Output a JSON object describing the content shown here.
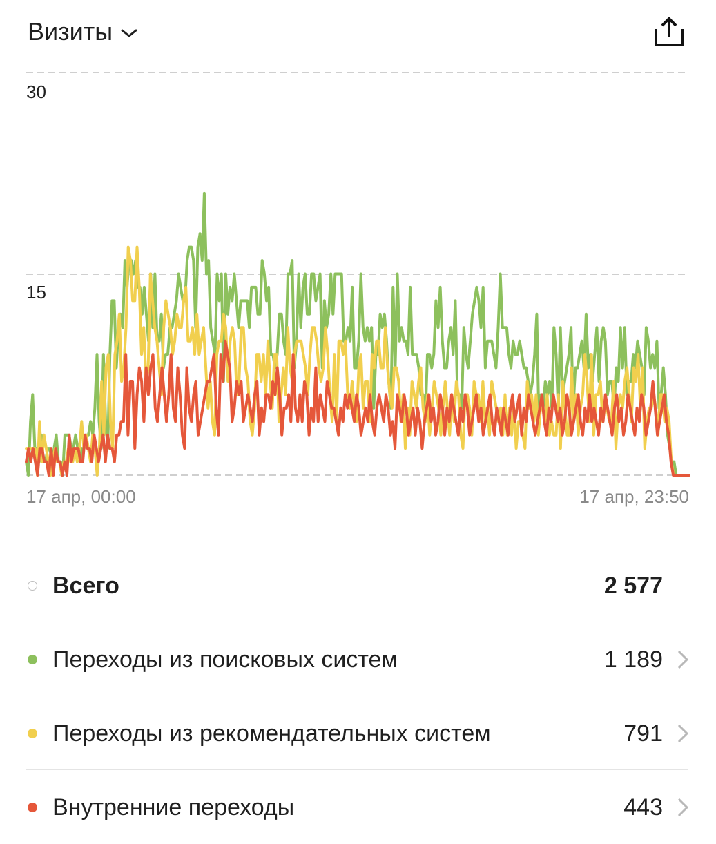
{
  "header": {
    "metric_title": "Визиты",
    "dropdown_icon": "chevron-down-icon",
    "share_icon": "share-export-icon"
  },
  "chart_data": {
    "type": "line",
    "ylim": [
      0,
      30
    ],
    "yticks": [
      "30",
      "15"
    ],
    "x_start_label": "17 апр, 00:00",
    "x_end_label": "17 апр, 23:50",
    "grid": "dashed-horizontal",
    "series": [
      {
        "color": "#8dc05d",
        "values": [
          1,
          0,
          4,
          6,
          2,
          2,
          1,
          3,
          1,
          1,
          2,
          2,
          1,
          2,
          3,
          1,
          1,
          0,
          3,
          3,
          3,
          2,
          2,
          3,
          2,
          1,
          2,
          2,
          3,
          3,
          4,
          3,
          5,
          9,
          4,
          2,
          9,
          4,
          2,
          9,
          13,
          13,
          8,
          11,
          12,
          11,
          16,
          14,
          16,
          16,
          15,
          16,
          14,
          14,
          12,
          14,
          12,
          10,
          15,
          11,
          15,
          10,
          10,
          12,
          8,
          9,
          9,
          11,
          11,
          12,
          13,
          15,
          14,
          13,
          13,
          16,
          17,
          17,
          16,
          11,
          17,
          18,
          16,
          21,
          15,
          16,
          11,
          10,
          9,
          15,
          13,
          15,
          7,
          15,
          12,
          14,
          13,
          15,
          13,
          11,
          13,
          13,
          13,
          13,
          11,
          14,
          14,
          14,
          12,
          12,
          16,
          15,
          13,
          14,
          9,
          9,
          8,
          9,
          12,
          12,
          10,
          9,
          15,
          15,
          16,
          8,
          10,
          15,
          11,
          14,
          15,
          12,
          12,
          15,
          15,
          13,
          14,
          15,
          8,
          13,
          11,
          12,
          15,
          12,
          15,
          15,
          15,
          15,
          10,
          10,
          11,
          10,
          14,
          8,
          8,
          10,
          15,
          11,
          10,
          11,
          10,
          11,
          5,
          9,
          9,
          12,
          11,
          12,
          10,
          7,
          5,
          14,
          8,
          15,
          10,
          11,
          10,
          10,
          9,
          14,
          9,
          9,
          9,
          8,
          6,
          6,
          4,
          9,
          9,
          8,
          9,
          13,
          11,
          14,
          10,
          8,
          8,
          10,
          11,
          9,
          13,
          6,
          6,
          5,
          11,
          9,
          8,
          10,
          12,
          13,
          14,
          13,
          11,
          14,
          8,
          10,
          10,
          10,
          9,
          8,
          11,
          15,
          11,
          11,
          11,
          9,
          8,
          10,
          9,
          9,
          10,
          9,
          8,
          8,
          7,
          6,
          7,
          9,
          12,
          4,
          6,
          5,
          7,
          6,
          7,
          5,
          11,
          9,
          5,
          11,
          6,
          7,
          8,
          9,
          11,
          5,
          8,
          8,
          9,
          10,
          8,
          12,
          8,
          9,
          7,
          9,
          11,
          7,
          10,
          11,
          10,
          6,
          7,
          7,
          5,
          8,
          7,
          11,
          8,
          11,
          6,
          7,
          7,
          9,
          8,
          10,
          9,
          8,
          6,
          11,
          10,
          8,
          9,
          8,
          10,
          5,
          6,
          8,
          6,
          3,
          2,
          1,
          1,
          0,
          0,
          0,
          0,
          0,
          0,
          0
        ]
      },
      {
        "color": "#f1cf4e",
        "values": [
          2,
          2,
          2,
          2,
          2,
          0,
          4,
          1,
          3,
          2,
          1,
          0,
          1,
          2,
          1,
          1,
          0,
          1,
          1,
          2,
          1,
          1,
          2,
          1,
          2,
          4,
          2,
          3,
          2,
          1,
          3,
          2,
          0,
          2,
          7,
          3,
          8,
          9,
          4,
          2,
          9,
          10,
          12,
          7,
          8,
          11,
          17,
          16,
          13,
          13,
          17,
          14,
          9,
          11,
          7,
          8,
          15,
          13,
          11,
          10,
          8,
          6,
          11,
          13,
          12,
          11,
          9,
          10,
          12,
          11,
          11,
          13,
          14,
          10,
          10,
          11,
          9,
          12,
          9,
          10,
          11,
          8,
          5,
          7,
          4,
          3,
          9,
          10,
          10,
          12,
          11,
          7,
          10,
          11,
          10,
          6,
          7,
          11,
          11,
          8,
          7,
          4,
          3,
          5,
          9,
          9,
          7,
          9,
          6,
          10,
          7,
          5,
          9,
          9,
          4,
          6,
          8,
          6,
          11,
          8,
          7,
          9,
          10,
          10,
          10,
          9,
          8,
          6,
          9,
          11,
          11,
          10,
          8,
          7,
          8,
          11,
          9,
          6,
          4,
          9,
          4,
          10,
          10,
          9,
          10,
          6,
          5,
          7,
          5,
          4,
          8,
          9,
          5,
          7,
          7,
          4,
          9,
          8,
          10,
          10,
          8,
          8,
          11,
          8,
          6,
          5,
          8,
          8,
          7,
          4,
          6,
          2,
          5,
          3,
          7,
          6,
          5,
          7,
          8,
          5,
          4,
          6,
          3,
          5,
          7,
          6,
          5,
          3,
          5,
          7,
          5,
          3,
          6,
          4,
          7,
          6,
          3,
          2,
          6,
          6,
          5,
          3,
          7,
          6,
          6,
          4,
          7,
          4,
          5,
          3,
          7,
          6,
          5,
          4,
          5,
          3,
          6,
          3,
          5,
          3,
          5,
          2,
          4,
          4,
          3,
          2,
          7,
          5,
          6,
          4,
          6,
          3,
          5,
          5,
          4,
          6,
          3,
          4,
          3,
          3,
          6,
          2,
          7,
          5,
          3,
          3,
          8,
          4,
          6,
          3,
          5,
          6,
          9,
          7,
          4,
          9,
          3,
          6,
          6,
          7,
          4,
          5,
          5,
          4,
          4,
          7,
          2,
          5,
          6,
          5,
          7,
          8,
          6,
          4,
          8,
          7,
          9,
          5,
          8,
          2,
          4,
          5,
          5,
          6,
          5,
          3,
          6,
          6,
          4,
          5,
          4,
          1,
          0,
          0,
          0,
          0,
          0,
          0,
          0,
          0
        ]
      },
      {
        "color": "#e5573a",
        "values": [
          1,
          2,
          1,
          2,
          1,
          0,
          2,
          2,
          1,
          1,
          0,
          2,
          0,
          2,
          1,
          1,
          0,
          1,
          0,
          3,
          1,
          2,
          2,
          2,
          1,
          1,
          3,
          2,
          2,
          1,
          3,
          2,
          1,
          2,
          3,
          1,
          3,
          2,
          2,
          1,
          3,
          3,
          4,
          4,
          9,
          3,
          7,
          7,
          2,
          6,
          8,
          7,
          4,
          8,
          6,
          8,
          9,
          5,
          4,
          6,
          8,
          6,
          4,
          6,
          9,
          5,
          4,
          8,
          6,
          3,
          2,
          8,
          5,
          4,
          6,
          7,
          3,
          4,
          5,
          6,
          7,
          7,
          8,
          9,
          5,
          3,
          9,
          7,
          10,
          9,
          8,
          4,
          5,
          7,
          6,
          7,
          4,
          5,
          6,
          5,
          4,
          6,
          7,
          3,
          5,
          4,
          6,
          6,
          5,
          7,
          6,
          8,
          6,
          3,
          5,
          5,
          6,
          4,
          9,
          5,
          4,
          6,
          4,
          7,
          6,
          3,
          5,
          4,
          8,
          4,
          6,
          5,
          4,
          7,
          6,
          5,
          5,
          4,
          3,
          5,
          4,
          6,
          5,
          6,
          5,
          4,
          6,
          5,
          3,
          4,
          5,
          4,
          6,
          4,
          3,
          5,
          6,
          5,
          4,
          6,
          5,
          3,
          4,
          2,
          6,
          5,
          4,
          6,
          5,
          3,
          4,
          5,
          3,
          5,
          4,
          2,
          4,
          5,
          6,
          4,
          5,
          3,
          4,
          6,
          5,
          3,
          5,
          4,
          6,
          5,
          4,
          3,
          5,
          4,
          6,
          5,
          3,
          4,
          5,
          6,
          4,
          5,
          3,
          4,
          5,
          6,
          4,
          3,
          5,
          4,
          3,
          5,
          4,
          3,
          5,
          6,
          4,
          5,
          6,
          3,
          5,
          4,
          6,
          5,
          4,
          3,
          4,
          5,
          6,
          4,
          3,
          5,
          4,
          6,
          5,
          4,
          5,
          3,
          4,
          6,
          5,
          3,
          4,
          5,
          6,
          4,
          3,
          5,
          4,
          6,
          4,
          5,
          4,
          3,
          5,
          4,
          6,
          5,
          4,
          3,
          5,
          6,
          4,
          5,
          3,
          4,
          6,
          5,
          4,
          3,
          5,
          4,
          6,
          5,
          3,
          4,
          5,
          7,
          5,
          3,
          4,
          5,
          6,
          4,
          3,
          1,
          0,
          0,
          0,
          0,
          0,
          0,
          0,
          0
        ]
      }
    ]
  },
  "legend": {
    "total": {
      "label": "Всего",
      "value": "2 577"
    },
    "items": [
      {
        "label": "Переходы из поисковых систем",
        "value": "1 189",
        "color": "#8dc05d"
      },
      {
        "label": "Переходы из рекомендательных систем",
        "value": "791",
        "color": "#f1cf4e"
      },
      {
        "label": "Внутренние переходы",
        "value": "443",
        "color": "#e5573a"
      }
    ]
  }
}
